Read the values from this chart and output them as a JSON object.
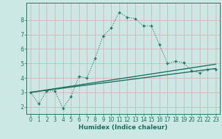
{
  "xlabel": "Humidex (Indice chaleur)",
  "bg_color": "#cce8e4",
  "grid_color": "#d8b8b8",
  "line_color": "#1a6e60",
  "xlim": [
    -0.5,
    23.5
  ],
  "ylim": [
    1.5,
    9.2
  ],
  "xticks": [
    0,
    1,
    2,
    3,
    4,
    5,
    6,
    7,
    8,
    9,
    10,
    11,
    12,
    13,
    14,
    15,
    16,
    17,
    18,
    19,
    20,
    21,
    22,
    23
  ],
  "yticks": [
    2,
    3,
    4,
    5,
    6,
    7,
    8
  ],
  "line1_x": [
    0,
    1,
    2,
    3,
    4,
    5,
    6,
    7,
    8,
    9,
    10,
    11,
    12,
    13,
    14,
    15,
    16,
    17,
    18,
    19,
    20,
    21,
    22,
    23
  ],
  "line1_y": [
    3.0,
    2.2,
    3.1,
    3.1,
    1.9,
    2.7,
    4.1,
    4.0,
    5.35,
    6.9,
    7.45,
    8.55,
    8.2,
    8.1,
    7.6,
    7.6,
    6.3,
    5.0,
    5.15,
    5.05,
    4.5,
    4.35,
    4.6,
    4.6
  ],
  "line2_x": [
    0,
    23
  ],
  "line2_y": [
    3.0,
    4.65
  ],
  "line3_x": [
    0,
    23
  ],
  "line3_y": [
    3.0,
    4.95
  ]
}
